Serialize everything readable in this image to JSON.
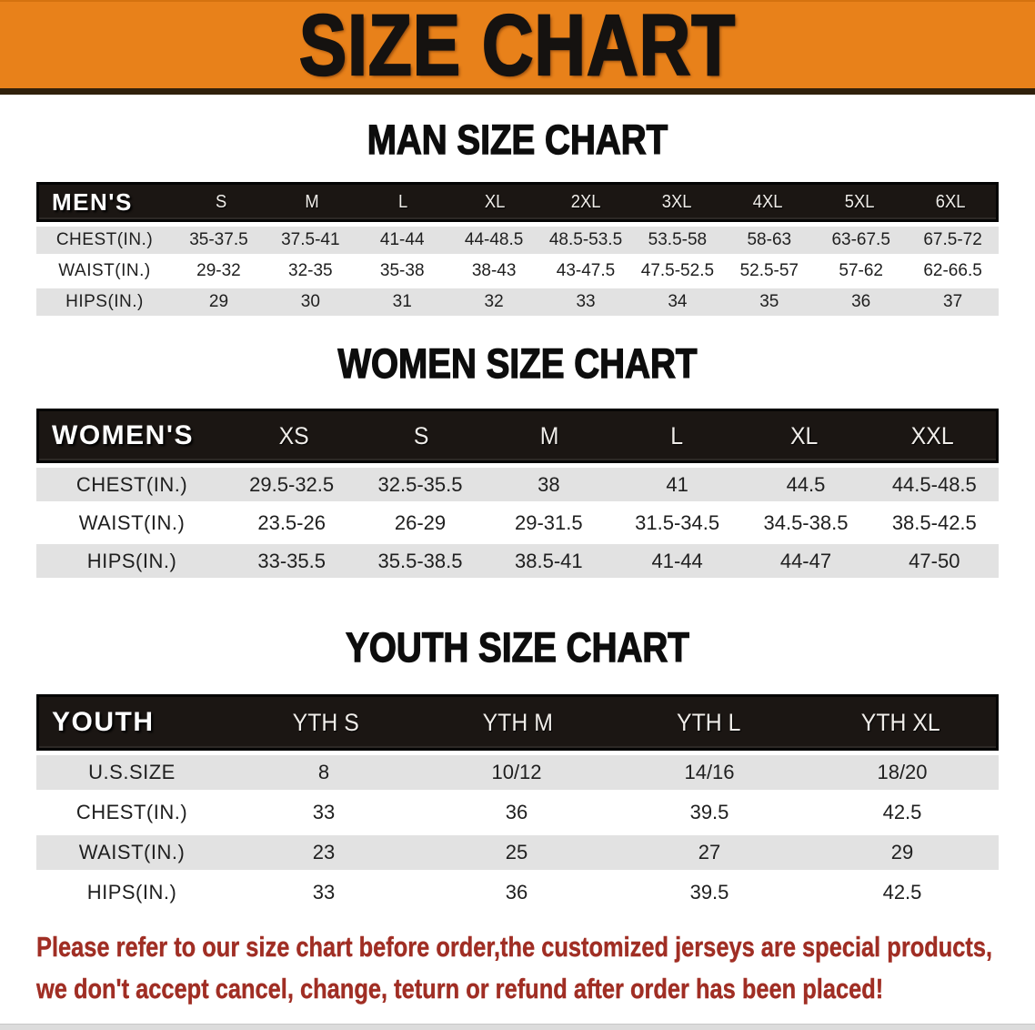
{
  "banner": {
    "title": "SIZE CHART",
    "bg_color": "#E8811A",
    "text_color": "#151210"
  },
  "chart_data": [
    {
      "type": "table",
      "title": "MAN SIZE CHART",
      "header_label": "MEN'S",
      "columns": [
        "S",
        "M",
        "L",
        "XL",
        "2XL",
        "3XL",
        "4XL",
        "5XL",
        "6XL"
      ],
      "rows": [
        {
          "label": "CHEST(IN.)",
          "values": [
            "35-37.5",
            "37.5-41",
            "41-44",
            "44-48.5",
            "48.5-53.5",
            "53.5-58",
            "58-63",
            "63-67.5",
            "67.5-72"
          ]
        },
        {
          "label": "WAIST(IN.)",
          "values": [
            "29-32",
            "32-35",
            "35-38",
            "38-43",
            "43-47.5",
            "47.5-52.5",
            "52.5-57",
            "57-62",
            "62-66.5"
          ]
        },
        {
          "label": "HIPS(IN.)",
          "values": [
            "29",
            "30",
            "31",
            "32",
            "33",
            "34",
            "35",
            "36",
            "37"
          ]
        }
      ]
    },
    {
      "type": "table",
      "title": "WOMEN SIZE CHART",
      "header_label": "WOMEN'S",
      "columns": [
        "XS",
        "S",
        "M",
        "L",
        "XL",
        "XXL"
      ],
      "rows": [
        {
          "label": "CHEST(IN.)",
          "values": [
            "29.5-32.5",
            "32.5-35.5",
            "38",
            "41",
            "44.5",
            "44.5-48.5"
          ]
        },
        {
          "label": "WAIST(IN.)",
          "values": [
            "23.5-26",
            "26-29",
            "29-31.5",
            "31.5-34.5",
            "34.5-38.5",
            "38.5-42.5"
          ]
        },
        {
          "label": "HIPS(IN.)",
          "values": [
            "33-35.5",
            "35.5-38.5",
            "38.5-41",
            "41-44",
            "44-47",
            "47-50"
          ]
        }
      ]
    },
    {
      "type": "table",
      "title": "YOUTH SIZE CHART",
      "header_label": "YOUTH",
      "columns": [
        "YTH S",
        "YTH M",
        "YTH L",
        "YTH XL"
      ],
      "rows": [
        {
          "label": "U.S.SIZE",
          "values": [
            "8",
            "10/12",
            "14/16",
            "18/20"
          ]
        },
        {
          "label": "CHEST(IN.)",
          "values": [
            "33",
            "36",
            "39.5",
            "42.5"
          ]
        },
        {
          "label": "WAIST(IN.)",
          "values": [
            "23",
            "25",
            "27",
            "29"
          ]
        },
        {
          "label": "HIPS(IN.)",
          "values": [
            "33",
            "36",
            "39.5",
            "42.5"
          ]
        }
      ]
    }
  ],
  "footer": {
    "line1": "Please refer to our size chart before order,the customized jerseys are special products,",
    "line2": "we don't accept cancel, change, teturn or refund after order has been placed!",
    "color": "#A02E24"
  }
}
